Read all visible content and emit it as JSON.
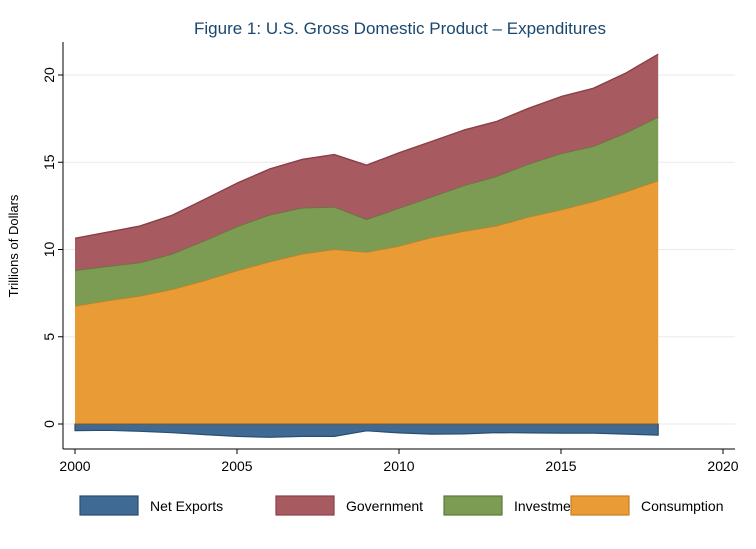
{
  "chart_data": {
    "type": "area",
    "stacked": true,
    "title": "Figure 1: U.S. Gross Domestic Product – Expenditures",
    "ylabel": "Trillions of Dollars",
    "xlabel": "",
    "xlim": [
      2000,
      2020
    ],
    "ylim": [
      -1.5,
      22
    ],
    "xticks": [
      2000,
      2005,
      2010,
      2015,
      2020
    ],
    "yticks": [
      0,
      5,
      10,
      15,
      20
    ],
    "grid": true,
    "legend_position": "bottom",
    "x": [
      2000,
      2001,
      2002,
      2003,
      2004,
      2005,
      2006,
      2007,
      2008,
      2009,
      2010,
      2011,
      2012,
      2013,
      2014,
      2015,
      2016,
      2017,
      2018
    ],
    "series": [
      {
        "name": "Net Exports",
        "color": "#3e6a94",
        "values": [
          -0.38,
          -0.36,
          -0.42,
          -0.5,
          -0.61,
          -0.71,
          -0.76,
          -0.71,
          -0.71,
          -0.39,
          -0.51,
          -0.58,
          -0.57,
          -0.49,
          -0.51,
          -0.52,
          -0.52,
          -0.58,
          -0.64
        ]
      },
      {
        "name": "Consumption",
        "color": "#e99c35",
        "values": [
          6.77,
          7.07,
          7.34,
          7.72,
          8.23,
          8.79,
          9.3,
          9.75,
          10.01,
          9.85,
          10.2,
          10.69,
          11.05,
          11.36,
          11.86,
          12.28,
          12.75,
          13.31,
          13.95
        ]
      },
      {
        "name": "Investment",
        "color": "#7c9c53",
        "values": [
          2.04,
          1.97,
          1.91,
          2.03,
          2.28,
          2.53,
          2.68,
          2.64,
          2.43,
          1.88,
          2.17,
          2.33,
          2.62,
          2.83,
          3.04,
          3.22,
          3.17,
          3.37,
          3.65
        ]
      },
      {
        "name": "Government",
        "color": "#a85a61",
        "values": [
          1.83,
          1.95,
          2.09,
          2.21,
          2.36,
          2.48,
          2.63,
          2.77,
          3.0,
          3.1,
          3.17,
          3.17,
          3.17,
          3.14,
          3.19,
          3.26,
          3.32,
          3.43,
          3.59
        ]
      }
    ],
    "legend_order": [
      "Net Exports",
      "Government",
      "Investment",
      "Consumption"
    ]
  }
}
